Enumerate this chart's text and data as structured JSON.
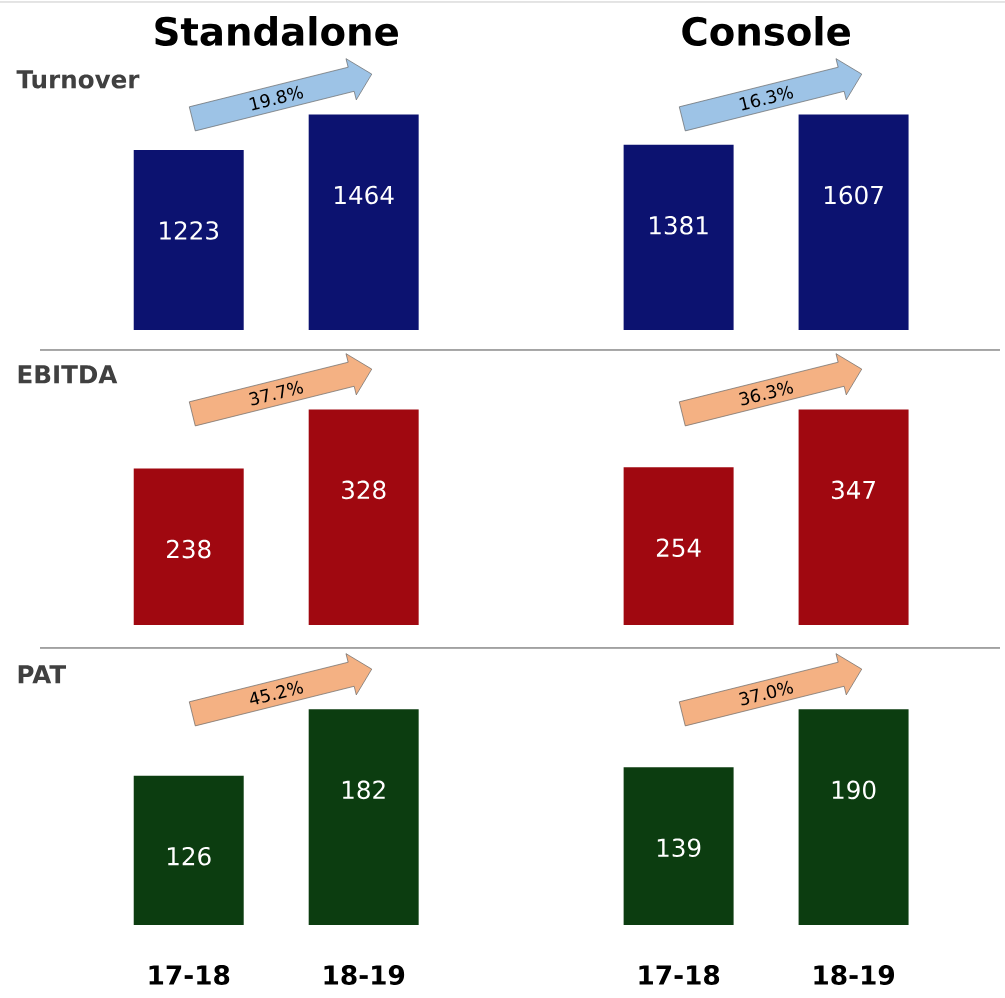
{
  "chart_data": [
    {
      "type": "bar",
      "title": "Standalone",
      "ylabel": "Turnover",
      "categories": [
        null,
        null
      ],
      "values": [
        1223,
        1464
      ],
      "color": "#0c1270",
      "data_labels": true,
      "tick_labels": false,
      "annotations": [
        "19.8%"
      ]
    },
    {
      "type": "bar",
      "title": "Console",
      "categories": [
        null,
        null
      ],
      "values": [
        1381,
        1607
      ],
      "color": "#0c1270",
      "data_labels": true,
      "tick_labels": false,
      "annotations": [
        "16.3%"
      ]
    },
    {
      "type": "bar",
      "ylabel": "EBITDA",
      "categories": [
        null,
        null
      ],
      "values": [
        238,
        328
      ],
      "color": "#a00810",
      "data_labels": true,
      "tick_labels": false,
      "annotations": [
        "37.7%"
      ]
    },
    {
      "type": "bar",
      "categories": [
        null,
        null
      ],
      "values": [
        254,
        347
      ],
      "color": "#a00810",
      "data_labels": true,
      "tick_labels": false,
      "annotations": [
        "36.3%"
      ]
    },
    {
      "type": "bar",
      "ylabel": "PAT",
      "categories": [
        "17-18",
        "18-19"
      ],
      "values": [
        126,
        182
      ],
      "color": "#0c3d10",
      "data_labels": true,
      "tick_labels": "x",
      "annotations": [
        "45.2%"
      ]
    },
    {
      "type": "bar",
      "categories": [
        "17-18",
        "18-19"
      ],
      "values": [
        139,
        190
      ],
      "color": "#0c3d10",
      "data_labels": true,
      "tick_labels": "x",
      "annotations": [
        "37.0%"
      ]
    }
  ]
}
